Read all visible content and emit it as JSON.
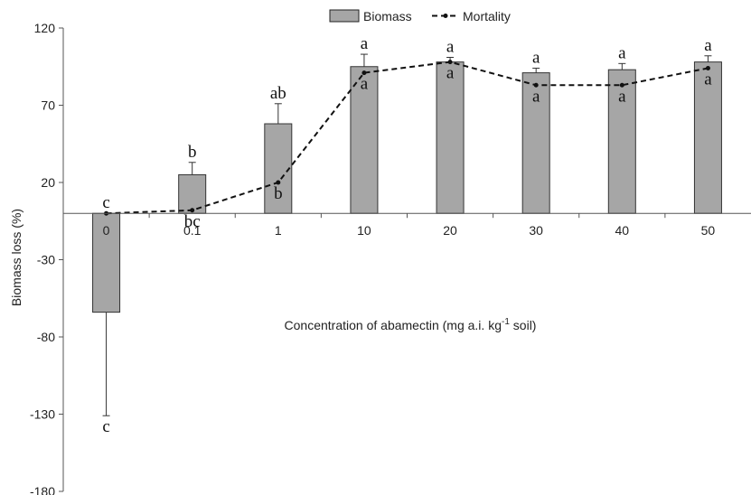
{
  "chart_data": {
    "type": "bar",
    "categories": [
      "0",
      "0.1",
      "1",
      "10",
      "20",
      "30",
      "40",
      "50"
    ],
    "series": [
      {
        "name": "Biomass",
        "type": "bar",
        "color": "#a6a6a6",
        "values": [
          -64,
          25,
          58,
          95,
          98,
          91,
          93,
          98
        ],
        "error": [
          67,
          8,
          13,
          8,
          3,
          3,
          4,
          4
        ],
        "letters": [
          "c",
          "b",
          "ab",
          "a",
          "a",
          "a",
          "a",
          "a"
        ],
        "letters_below": [
          "c",
          "",
          "",
          "",
          "",
          "",
          "",
          ""
        ]
      },
      {
        "name": "Mortality",
        "type": "line",
        "style": "dashed",
        "color": "#111111",
        "values": [
          0,
          2,
          20,
          91,
          98,
          83,
          83,
          94
        ],
        "letters": [
          "",
          "bc",
          "b",
          "a",
          "a",
          "a",
          "a",
          "a"
        ]
      }
    ],
    "ylabel": "Biomass loss (%)",
    "xlabel_main": "Concentration of abamectin (mg a.i. kg",
    "xlabel_sup": "-1",
    "xlabel_tail": " soil)",
    "ylim": [
      -180,
      120
    ],
    "yticks": [
      120,
      70,
      20,
      -30,
      -80,
      -130,
      -180
    ],
    "legend_position": "top-center",
    "grid": false
  }
}
